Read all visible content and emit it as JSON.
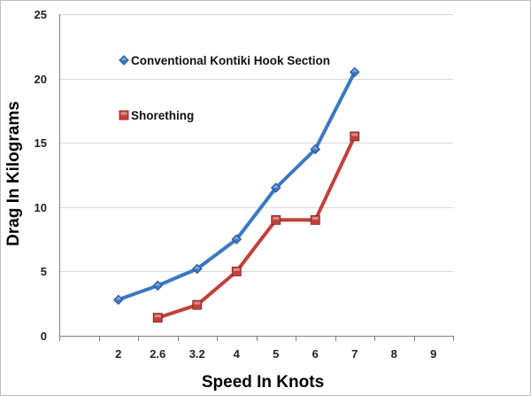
{
  "chart_data": {
    "type": "line",
    "title": "",
    "xlabel": "Speed In Knots",
    "ylabel": "Drag In Kilograms",
    "categories": [
      "",
      "2",
      "2.6",
      "3.2",
      "4",
      "5",
      "6",
      "7",
      "8",
      "9"
    ],
    "ylim": [
      0,
      25
    ],
    "yticks": [
      0,
      5,
      10,
      15,
      20,
      25
    ],
    "grid": true,
    "legend_position": "upper-left",
    "series": [
      {
        "name": "Conventional Kontiki Hook Section",
        "color": "#3a78c2",
        "marker": "diamond",
        "values": [
          null,
          2.8,
          3.9,
          5.2,
          7.5,
          11.5,
          14.5,
          20.5,
          null,
          null
        ]
      },
      {
        "name": "Shorething",
        "color": "#c0413a",
        "marker": "square",
        "values": [
          null,
          null,
          1.4,
          2.4,
          5.0,
          9.0,
          9.0,
          15.5,
          null,
          null
        ]
      }
    ]
  }
}
